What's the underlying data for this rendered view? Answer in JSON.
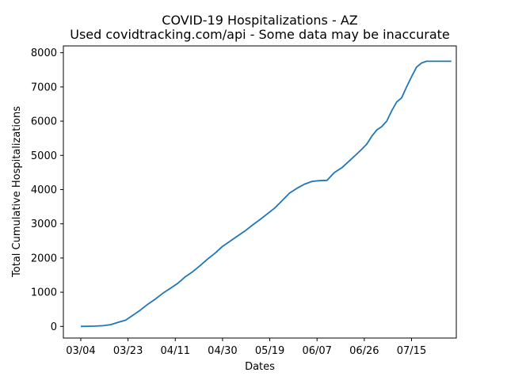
{
  "chart_data": {
    "type": "line",
    "title": "COVID-19 Hospitalizations - AZ",
    "subtitle": "Used covidtracking.com/api - Some data may be inaccurate",
    "xlabel": "Dates",
    "ylabel": "Total Cumulative Hospitalizations",
    "x_ticks": [
      "03/04",
      "03/23",
      "04/11",
      "04/30",
      "05/19",
      "06/07",
      "06/26",
      "07/15"
    ],
    "y_ticks": [
      0,
      1000,
      2000,
      3000,
      4000,
      5000,
      6000,
      7000,
      8000
    ],
    "ylim": [
      -340,
      8200
    ],
    "xlim_days": [
      -7,
      151
    ],
    "grid": false,
    "line_color": "#1f77b4",
    "series": [
      {
        "x": [
          "03/04",
          "03/07",
          "03/10",
          "03/13",
          "03/16",
          "03/19",
          "03/22",
          "03/25",
          "03/28",
          "03/31",
          "04/03",
          "04/06",
          "04/09",
          "04/12",
          "04/15",
          "04/18",
          "04/21",
          "04/24",
          "04/27",
          "04/30",
          "05/03",
          "05/06",
          "05/09",
          "05/12",
          "05/15",
          "05/18",
          "05/21",
          "05/24",
          "05/27",
          "05/30",
          "06/02",
          "06/05",
          "06/08",
          "06/11",
          "06/14",
          "06/17",
          "06/20",
          "06/23",
          "06/25",
          "06/27",
          "06/29",
          "07/01",
          "07/03",
          "07/05",
          "07/07",
          "07/09",
          "07/11",
          "07/13",
          "07/15",
          "07/17",
          "07/19",
          "07/21",
          "07/23",
          "07/25",
          "07/27",
          "07/29",
          "07/31"
        ],
        "values": [
          0,
          5,
          10,
          20,
          50,
          120,
          180,
          330,
          480,
          650,
          800,
          970,
          1110,
          1260,
          1450,
          1600,
          1780,
          1970,
          2140,
          2340,
          2490,
          2640,
          2790,
          2960,
          3120,
          3290,
          3460,
          3680,
          3900,
          4040,
          4160,
          4240,
          4260,
          4270,
          4500,
          4640,
          4840,
          5040,
          5180,
          5330,
          5560,
          5740,
          5840,
          6000,
          6300,
          6560,
          6680,
          7000,
          7300,
          7580,
          7700,
          7750,
          7750,
          7750,
          7750,
          7750,
          7750
        ]
      }
    ]
  }
}
